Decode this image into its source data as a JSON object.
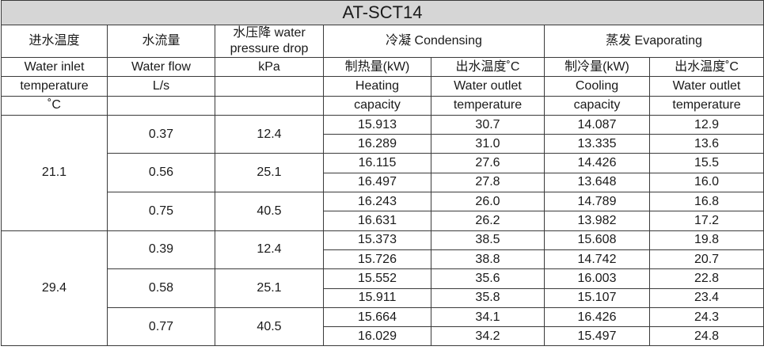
{
  "title": "AT-SCT14",
  "headers": {
    "inlet_cn": "进水温度",
    "flow_cn": "水流量",
    "pressure_cn_l1": "水压降 water",
    "pressure_cn_l2": "pressure drop",
    "condensing": "冷凝 Condensing",
    "evaporating": "蒸发 Evaporating",
    "inlet_en1": "Water inlet",
    "inlet_en2": "temperature",
    "inlet_unit": "˚C",
    "flow_en": "Water flow",
    "flow_unit": "L/s",
    "pressure_unit": "kPa",
    "heat_cn": "制热量(kW)",
    "heat_en1": "Heating",
    "heat_en2": "capacity",
    "cond_out_cn": "出水温度˚C",
    "cond_out_en1": "Water outlet",
    "cond_out_en2": "temperature",
    "cool_cn": "制冷量(kW)",
    "cool_en1": "Cooling",
    "cool_en2": "capacity",
    "evap_out_cn": "出水温度˚C",
    "evap_out_en1": "Water outlet",
    "evap_out_en2": "temperature"
  },
  "groups": [
    {
      "inlet": "21.1",
      "flows": [
        {
          "flow": "0.37",
          "pressure": "12.4",
          "rows": [
            {
              "heating": "15.913",
              "cond_outlet": "30.7",
              "cooling": "14.087",
              "evap_outlet": "12.9"
            },
            {
              "heating": "16.289",
              "cond_outlet": "31.0",
              "cooling": "13.335",
              "evap_outlet": "13.6"
            }
          ]
        },
        {
          "flow": "0.56",
          "pressure": "25.1",
          "rows": [
            {
              "heating": "16.115",
              "cond_outlet": "27.6",
              "cooling": "14.426",
              "evap_outlet": "15.5"
            },
            {
              "heating": "16.497",
              "cond_outlet": "27.8",
              "cooling": "13.648",
              "evap_outlet": "16.0"
            }
          ]
        },
        {
          "flow": "0.75",
          "pressure": "40.5",
          "rows": [
            {
              "heating": "16.243",
              "cond_outlet": "26.0",
              "cooling": "14.789",
              "evap_outlet": "16.8"
            },
            {
              "heating": "16.631",
              "cond_outlet": "26.2",
              "cooling": "13.982",
              "evap_outlet": "17.2"
            }
          ]
        }
      ]
    },
    {
      "inlet": "29.4",
      "flows": [
        {
          "flow": "0.39",
          "pressure": "12.4",
          "rows": [
            {
              "heating": "15.373",
              "cond_outlet": "38.5",
              "cooling": "15.608",
              "evap_outlet": "19.8"
            },
            {
              "heating": "15.726",
              "cond_outlet": "38.8",
              "cooling": "14.742",
              "evap_outlet": "20.7"
            }
          ]
        },
        {
          "flow": "0.58",
          "pressure": "25.1",
          "rows": [
            {
              "heating": "15.552",
              "cond_outlet": "35.6",
              "cooling": "16.003",
              "evap_outlet": "22.8"
            },
            {
              "heating": "15.911",
              "cond_outlet": "35.8",
              "cooling": "15.107",
              "evap_outlet": "23.4"
            }
          ]
        },
        {
          "flow": "0.77",
          "pressure": "40.5",
          "rows": [
            {
              "heating": "15.664",
              "cond_outlet": "34.1",
              "cooling": "16.426",
              "evap_outlet": "24.3"
            },
            {
              "heating": "16.029",
              "cond_outlet": "34.2",
              "cooling": "15.497",
              "evap_outlet": "24.8"
            }
          ]
        }
      ]
    }
  ]
}
